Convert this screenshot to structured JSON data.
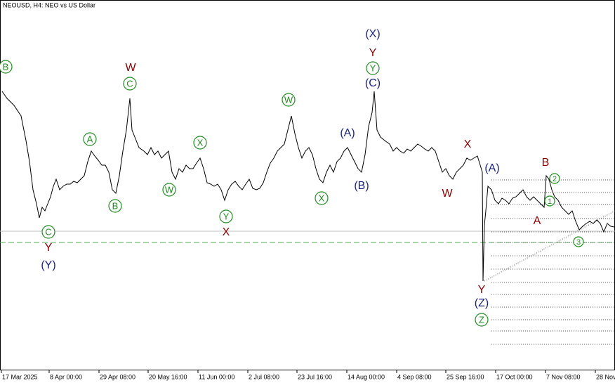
{
  "chart_data": {
    "type": "line",
    "title": "NEOUSD, H4:  NEO vs US Dollar",
    "color": "#000000",
    "xlim": [
      0,
      876
    ],
    "ylim": [
      0,
      527
    ],
    "xticks": [
      {
        "value": 2,
        "label": "17 Mar 2025"
      },
      {
        "value": 70,
        "label": "8 Apr 00:00"
      },
      {
        "value": 141,
        "label": "29 Apr 08:00"
      },
      {
        "value": 211,
        "label": "20 May 16:00"
      },
      {
        "value": 282,
        "label": "11 Jun 00:00"
      },
      {
        "value": 353,
        "label": "2 Jul 08:00"
      },
      {
        "value": 423,
        "label": "23 Jul 16:00"
      },
      {
        "value": 494,
        "label": "14 Aug 00:00"
      },
      {
        "value": 565,
        "label": "4 Sep 08:00"
      },
      {
        "value": 635,
        "label": "25 Sep 16:00"
      },
      {
        "value": 706,
        "label": "17 Oct 00:00"
      },
      {
        "value": 777,
        "label": "7 Nov 08:00"
      },
      {
        "value": 848,
        "label": "28 Nov"
      }
    ],
    "x": [
      3,
      10,
      20,
      30,
      37,
      42,
      47,
      52,
      56,
      60,
      64,
      68,
      72,
      76,
      80,
      85,
      90,
      95,
      100,
      105,
      110,
      115,
      120,
      125,
      130,
      135,
      140,
      145,
      150,
      155,
      160,
      165,
      170,
      175,
      180,
      185,
      188,
      192,
      198,
      205,
      210,
      215,
      220,
      225,
      230,
      235,
      240,
      245,
      250,
      255,
      260,
      265,
      270,
      275,
      280,
      285,
      290,
      295,
      300,
      305,
      310,
      315,
      320,
      325,
      330,
      335,
      340,
      345,
      350,
      355,
      360,
      365,
      370,
      375,
      380,
      385,
      390,
      395,
      400,
      405,
      410,
      415,
      420,
      425,
      430,
      435,
      440,
      445,
      450,
      455,
      460,
      465,
      470,
      475,
      480,
      485,
      490,
      495,
      500,
      505,
      510,
      515,
      520,
      525,
      530,
      533,
      537,
      542,
      548,
      555,
      560,
      565,
      570,
      575,
      580,
      585,
      590,
      595,
      600,
      605,
      610,
      615,
      620,
      625,
      630,
      635,
      640,
      645,
      650,
      655,
      660,
      665,
      670,
      675,
      680,
      684,
      687,
      688,
      690,
      692,
      695,
      700,
      705,
      710,
      715,
      720,
      725,
      730,
      735,
      740,
      745,
      750,
      755,
      760,
      765,
      770,
      775,
      778,
      782,
      786,
      790,
      795,
      800,
      805,
      810,
      815,
      820,
      825,
      830,
      835,
      840,
      845,
      850,
      855,
      860,
      865,
      870,
      875
    ],
    "values": [
      397,
      387,
      377,
      362,
      327,
      297,
      257,
      237,
      217,
      232,
      227,
      237,
      247,
      262,
      272,
      257,
      262,
      265,
      265,
      269,
      267,
      272,
      277,
      297,
      312,
      305,
      299,
      292,
      292,
      282,
      257,
      252,
      277,
      312,
      342,
      387,
      342,
      332,
      317,
      312,
      307,
      317,
      307,
      312,
      302,
      307,
      312,
      282,
      272,
      287,
      282,
      292,
      287,
      287,
      295,
      302,
      287,
      267,
      265,
      262,
      265,
      257,
      242,
      257,
      265,
      269,
      262,
      257,
      265,
      272,
      259,
      257,
      259,
      267,
      282,
      295,
      302,
      312,
      317,
      322,
      342,
      362,
      337,
      317,
      302,
      312,
      317,
      307,
      287,
      272,
      267,
      282,
      292,
      282,
      297,
      302,
      312,
      317,
      307,
      297,
      287,
      282,
      307,
      347,
      367,
      397,
      342,
      332,
      327,
      322,
      312,
      317,
      312,
      309,
      315,
      312,
      317,
      322,
      319,
      315,
      312,
      317,
      312,
      297,
      282,
      287,
      277,
      272,
      282,
      287,
      292,
      302,
      299,
      302,
      305,
      292,
      282,
      127,
      207,
      227,
      262,
      257,
      242,
      237,
      245,
      242,
      237,
      245,
      247,
      252,
      257,
      247,
      242,
      247,
      242,
      237,
      232,
      277,
      272,
      257,
      247,
      242,
      232,
      227,
      222,
      227,
      212,
      200,
      205,
      209,
      212,
      209,
      214,
      209,
      197,
      209,
      205,
      204
    ],
    "hline": {
      "value": 198,
      "color": "#c0c0c0"
    },
    "dashed_hline": {
      "value": 182,
      "color": "#4caf50"
    },
    "levels": {
      "start": 700,
      "values": [
        271,
        253,
        236,
        216,
        197,
        182,
        163,
        144,
        125,
        108,
        90,
        72,
        56,
        37
      ],
      "color": "#555555"
    },
    "trendline": {
      "x": [
        690,
        876
      ],
      "values": [
        127,
        227
      ],
      "color": "#555555"
    },
    "annotations": [
      {
        "text": "B",
        "x": 8,
        "y": 432,
        "color": "#1e8c1e",
        "circled": true
      },
      {
        "text": "C",
        "x": 69,
        "y": 197,
        "color": "#1e8c1e",
        "circled": true
      },
      {
        "text": "Y",
        "x": 69,
        "y": 174,
        "color": "#8b0000",
        "circled": false
      },
      {
        "text": "(Y)",
        "x": 69,
        "y": 149,
        "color": "#1a237e",
        "circled": false
      },
      {
        "text": "W",
        "x": 186,
        "y": 430,
        "color": "#8b0000",
        "circled": false
      },
      {
        "text": "C",
        "x": 185,
        "y": 408,
        "color": "#1e8c1e",
        "circled": true
      },
      {
        "text": "A",
        "x": 128,
        "y": 329,
        "color": "#1e8c1e",
        "circled": true
      },
      {
        "text": "B",
        "x": 164,
        "y": 234,
        "color": "#1e8c1e",
        "circled": true
      },
      {
        "text": "W",
        "x": 241,
        "y": 257,
        "color": "#1e8c1e",
        "circled": true
      },
      {
        "text": "X",
        "x": 285,
        "y": 324,
        "color": "#1e8c1e",
        "circled": true
      },
      {
        "text": "Y",
        "x": 322,
        "y": 219,
        "color": "#1e8c1e",
        "circled": true
      },
      {
        "text": "X",
        "x": 322,
        "y": 196,
        "color": "#8b0000",
        "circled": false
      },
      {
        "text": "W",
        "x": 411,
        "y": 385,
        "color": "#1e8c1e",
        "circled": true
      },
      {
        "text": "X",
        "x": 458,
        "y": 245,
        "color": "#1e8c1e",
        "circled": true
      },
      {
        "text": "(A)",
        "x": 495,
        "y": 337,
        "color": "#1a237e",
        "circled": false
      },
      {
        "text": "(B)",
        "x": 515,
        "y": 262,
        "color": "#1a237e",
        "circled": false
      },
      {
        "text": "(X)",
        "x": 531,
        "y": 478,
        "color": "#1a237e",
        "circled": false
      },
      {
        "text": "Y",
        "x": 531,
        "y": 451,
        "color": "#8b0000",
        "circled": false
      },
      {
        "text": "Y",
        "x": 531,
        "y": 430,
        "color": "#1e8c1e",
        "circled": true
      },
      {
        "text": "(C)",
        "x": 531,
        "y": 408,
        "color": "#1a237e",
        "circled": false
      },
      {
        "text": "X",
        "x": 666,
        "y": 321,
        "color": "#8b0000",
        "circled": false
      },
      {
        "text": "W",
        "x": 637,
        "y": 251,
        "color": "#8b0000",
        "circled": false
      },
      {
        "text": "(A)",
        "x": 701,
        "y": 287,
        "color": "#1a237e",
        "circled": false
      },
      {
        "text": "Y",
        "x": 686,
        "y": 114,
        "color": "#8b0000",
        "circled": false
      },
      {
        "text": "(Z)",
        "x": 686,
        "y": 95,
        "color": "#1a237e",
        "circled": false
      },
      {
        "text": "Z",
        "x": 686,
        "y": 72,
        "color": "#1e8c1e",
        "circled": true
      },
      {
        "text": "B",
        "x": 777,
        "y": 295,
        "color": "#8b0000",
        "circled": false
      },
      {
        "text": "2",
        "x": 790,
        "y": 273,
        "color": "#1e8c1e",
        "circled": true
      },
      {
        "text": "1",
        "x": 783,
        "y": 241,
        "color": "#1e8c1e",
        "circled": true
      },
      {
        "text": "A",
        "x": 765,
        "y": 212,
        "color": "#8b0000",
        "circled": false
      },
      {
        "text": "3",
        "x": 824,
        "y": 183,
        "color": "#1e8c1e",
        "circled": true
      }
    ]
  }
}
